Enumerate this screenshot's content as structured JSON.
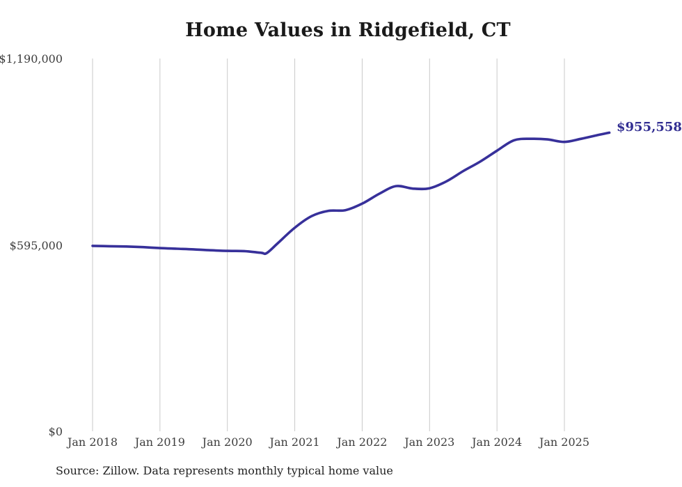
{
  "title": "Home Values in Ridgefield, CT",
  "source_note": "Source: Zillow. Data represents monthly typical home value",
  "colors": {
    "line": "#37309a",
    "end_label": "#322e92",
    "grid": "#c9c9c9",
    "title_text": "#1a1a1a",
    "axis_text": "#3d3d3d"
  },
  "chart_data": {
    "type": "line",
    "title": "Home Values in Ridgefield, CT",
    "series_name": "Typical home value (monthly)",
    "xlabel": "",
    "ylabel": "",
    "ylim": [
      0,
      1190000
    ],
    "grid": "vertical-only",
    "legend": "none",
    "end_label": "$955,558",
    "end_value": 955558,
    "y_ticks": [
      {
        "label": "$0",
        "value": 0
      },
      {
        "label": "$595,000",
        "value": 595000
      },
      {
        "label": "$1,190,000",
        "value": 1190000
      }
    ],
    "x_ticks": [
      {
        "label": "Jan 2018",
        "date": "2018-01"
      },
      {
        "label": "Jan 2019",
        "date": "2019-01"
      },
      {
        "label": "Jan 2020",
        "date": "2020-01"
      },
      {
        "label": "Jan 2021",
        "date": "2021-01"
      },
      {
        "label": "Jan 2022",
        "date": "2022-01"
      },
      {
        "label": "Jan 2023",
        "date": "2023-01"
      },
      {
        "label": "Jan 2024",
        "date": "2024-01"
      },
      {
        "label": "Jan 2025",
        "date": "2025-01"
      }
    ],
    "points": [
      [
        "2018-01",
        594000
      ],
      [
        "2018-04",
        593000
      ],
      [
        "2018-07",
        592000
      ],
      [
        "2018-10",
        590000
      ],
      [
        "2019-01",
        587000
      ],
      [
        "2019-04",
        585000
      ],
      [
        "2019-07",
        583000
      ],
      [
        "2019-10",
        580000
      ],
      [
        "2020-01",
        578000
      ],
      [
        "2020-04",
        577500
      ],
      [
        "2020-07",
        572000
      ],
      [
        "2020-08",
        571000
      ],
      [
        "2020-10",
        603000
      ],
      [
        "2021-01",
        652000
      ],
      [
        "2021-04",
        689000
      ],
      [
        "2021-07",
        706000
      ],
      [
        "2021-10",
        708000
      ],
      [
        "2022-01",
        729000
      ],
      [
        "2022-04",
        760000
      ],
      [
        "2022-07",
        785000
      ],
      [
        "2022-10",
        777000
      ],
      [
        "2023-01",
        778000
      ],
      [
        "2023-04",
        800000
      ],
      [
        "2023-07",
        833000
      ],
      [
        "2023-10",
        863000
      ],
      [
        "2024-01",
        898000
      ],
      [
        "2024-04",
        931000
      ],
      [
        "2024-07",
        936000
      ],
      [
        "2024-10",
        934000
      ],
      [
        "2025-01",
        926000
      ],
      [
        "2025-04",
        936000
      ],
      [
        "2025-07",
        948000
      ],
      [
        "2025-09",
        955558
      ]
    ]
  }
}
